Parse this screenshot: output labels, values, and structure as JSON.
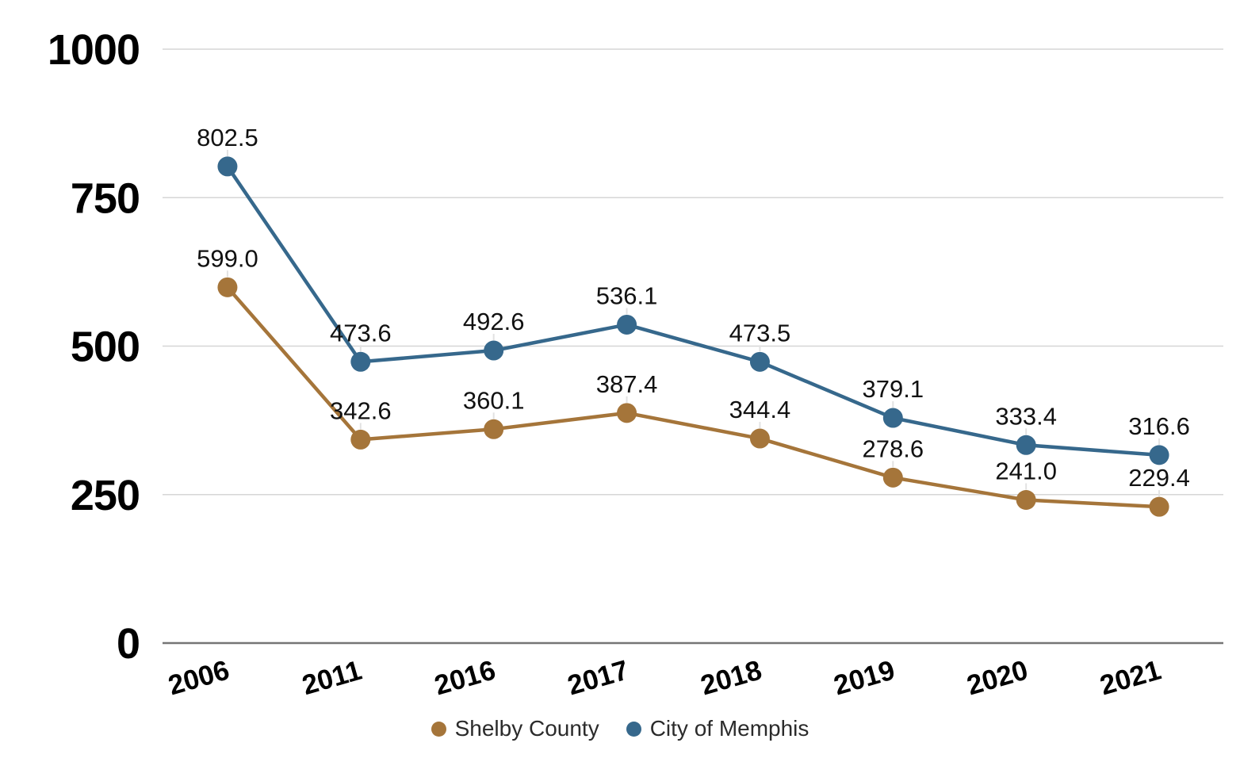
{
  "chart_data": {
    "type": "line",
    "categories": [
      "2006",
      "2011",
      "2016",
      "2017",
      "2018",
      "2019",
      "2020",
      "2021"
    ],
    "series": [
      {
        "name": "Shelby County",
        "color": "#A5753A",
        "values": [
          599.0,
          342.6,
          360.1,
          387.4,
          344.4,
          278.6,
          241.0,
          229.4
        ]
      },
      {
        "name": "City of Memphis",
        "color": "#36688C",
        "values": [
          802.5,
          473.6,
          492.6,
          536.1,
          473.5,
          379.1,
          333.4,
          316.6
        ]
      }
    ],
    "title": "",
    "xlabel": "",
    "ylabel": "",
    "ylim": [
      0,
      1000
    ],
    "yticks": [
      0,
      250,
      500,
      750,
      1000
    ],
    "grid": true,
    "legend_position": "bottom",
    "label_format": "fixed1",
    "data_labels": true,
    "colors": {
      "gridline": "#D6D6D6",
      "axis_line": "#757575",
      "leader_line": "#E2E2E2",
      "data_label_text": "#111111",
      "tick_text": "#000000",
      "legend_text": "#2B2B2B",
      "background": "#FFFFFF"
    }
  }
}
